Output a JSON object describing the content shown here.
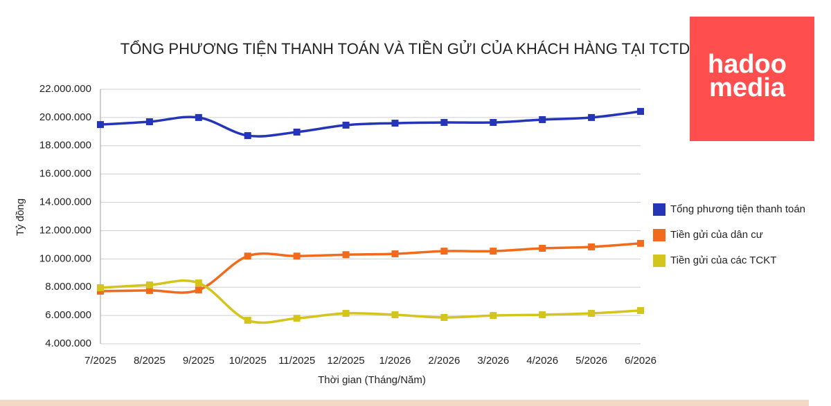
{
  "chart_data": {
    "type": "line",
    "title": "TỔNG PHƯƠNG TIỆN THANH TOÁN VÀ TIỀN GỬI CỦA KHÁCH HÀNG TẠI TCTD",
    "x_label": "Thời gian (Tháng/Năm)",
    "y_label": "Tỷ đồng",
    "categories": [
      "7/2025",
      "8/2025",
      "9/2025",
      "10/2025",
      "11/2025",
      "12/2025",
      "1/2026",
      "2/2026",
      "3/2026",
      "4/2026",
      "5/2026",
      "6/2026"
    ],
    "series": [
      {
        "name": "Tổng phương tiện thanh toán",
        "color": "#2435b8",
        "values": [
          19500000,
          19700000,
          20000000,
          18720000,
          18970000,
          19460000,
          19600000,
          19650000,
          19650000,
          19850000,
          20000000,
          20430000
        ]
      },
      {
        "name": "Tiền gửi của dân cư",
        "color": "#f26b1d",
        "values": [
          7720000,
          7770000,
          7800000,
          10200000,
          10200000,
          10300000,
          10360000,
          10550000,
          10550000,
          10750000,
          10850000,
          11100000
        ]
      },
      {
        "name": "Tiền gửi của các TCKT",
        "color": "#d3c51c",
        "values": [
          7960000,
          8160000,
          8300000,
          5660000,
          5800000,
          6150000,
          6050000,
          5860000,
          6000000,
          6050000,
          6150000,
          6350000
        ]
      }
    ],
    "ylim": [
      4000000,
      22000000
    ],
    "yticks": [
      {
        "value": 4000000,
        "label": "4.000.000"
      },
      {
        "value": 6000000,
        "label": "6.000.000"
      },
      {
        "value": 8000000,
        "label": "8.000.000"
      },
      {
        "value": 10000000,
        "label": "10.000.000"
      },
      {
        "value": 12000000,
        "label": "12.000.000"
      },
      {
        "value": 14000000,
        "label": "14.000.000"
      },
      {
        "value": 16000000,
        "label": "16.000.000"
      },
      {
        "value": 18000000,
        "label": "18.000.000"
      },
      {
        "value": 20000000,
        "label": "20.000.000"
      },
      {
        "value": 22000000,
        "label": "22.000.000"
      }
    ],
    "grid": true,
    "legend": "right"
  },
  "logo": {
    "line1": "hadoo",
    "line2": "media"
  }
}
